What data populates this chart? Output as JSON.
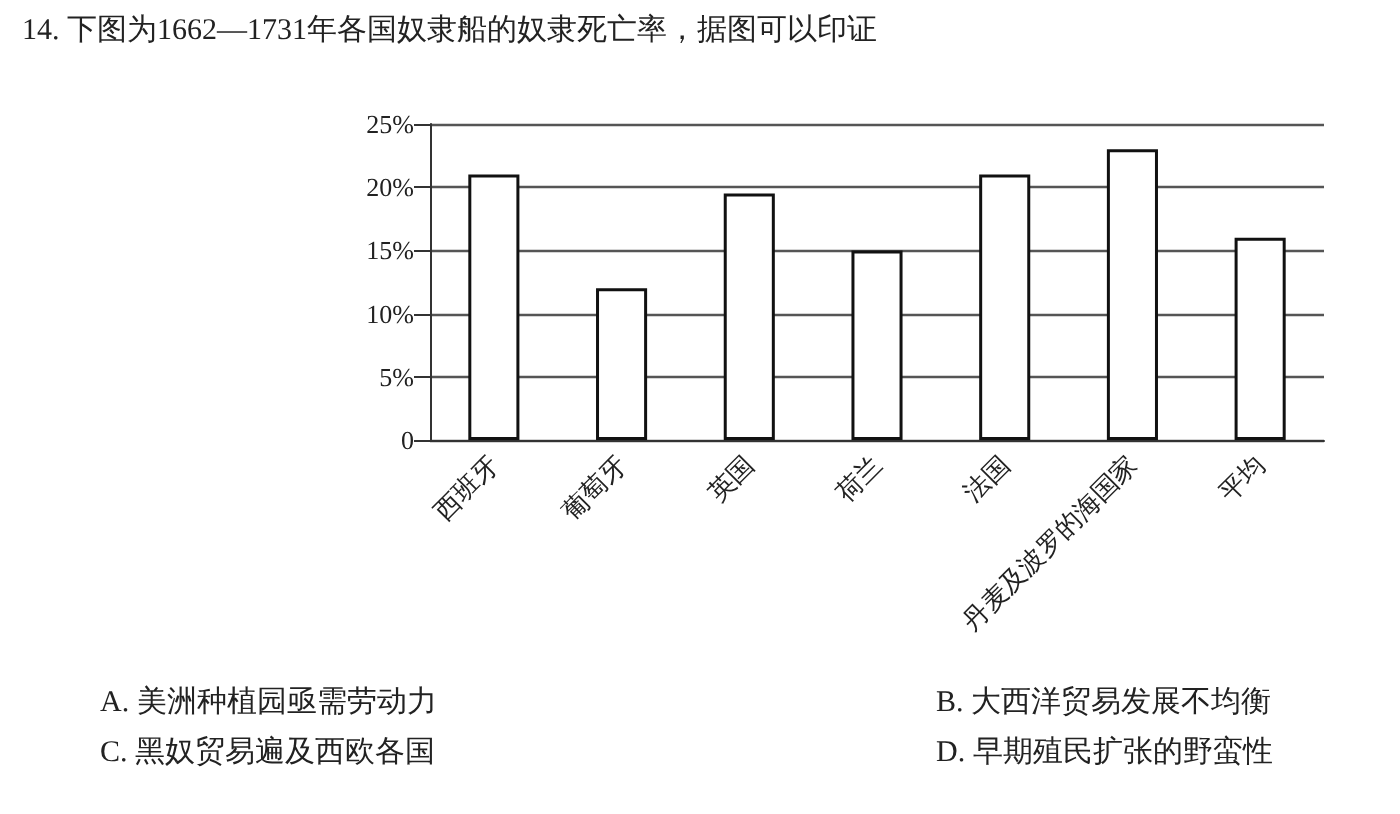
{
  "chart_data": {
    "type": "bar",
    "title": "14. 下图为1662—1731年各国奴隶船的奴隶死亡率，据图可以印证",
    "categories": [
      "西班牙",
      "葡萄牙",
      "英国",
      "荷兰",
      "法国",
      "丹麦及波罗的海国家",
      "平均"
    ],
    "values": [
      21,
      12,
      19.5,
      15,
      21,
      23,
      16
    ],
    "color": "#ffffff",
    "ylim": [
      0,
      25
    ],
    "yticks": [
      0,
      {
        "value": 5,
        "label": "5%"
      },
      {
        "value": 10,
        "label": "10%"
      },
      {
        "value": 15,
        "label": "15%"
      },
      {
        "value": 20,
        "label": "20%"
      },
      {
        "value": 25,
        "label": "25%"
      }
    ],
    "grid": "y",
    "annotations": [
      "A. 美洲种植园亟需劳动力",
      "B. 大西洋贸易发展不均衡",
      "C. 黑奴贸易遍及西欧各国",
      "D. 早期殖民扩张的野蛮性"
    ]
  }
}
